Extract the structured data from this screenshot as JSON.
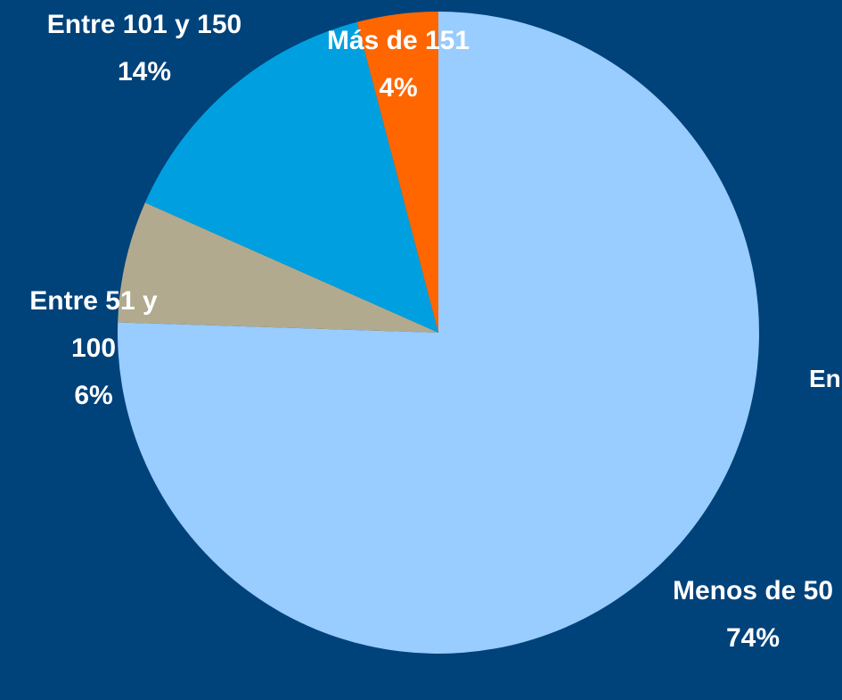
{
  "chart_data": {
    "type": "pie",
    "categories": [
      "Menos de 50",
      "Entre 51 y 100",
      "Entre 101 y 150",
      "Más de 151"
    ],
    "values": [
      74,
      6,
      14,
      4
    ],
    "value_labels": [
      "74%",
      "6%",
      "14%",
      "4%"
    ],
    "colors": [
      "#99ccff",
      "#b2aa8e",
      "#00a0e0",
      "#ff6600"
    ],
    "annotations": [
      "En"
    ]
  }
}
